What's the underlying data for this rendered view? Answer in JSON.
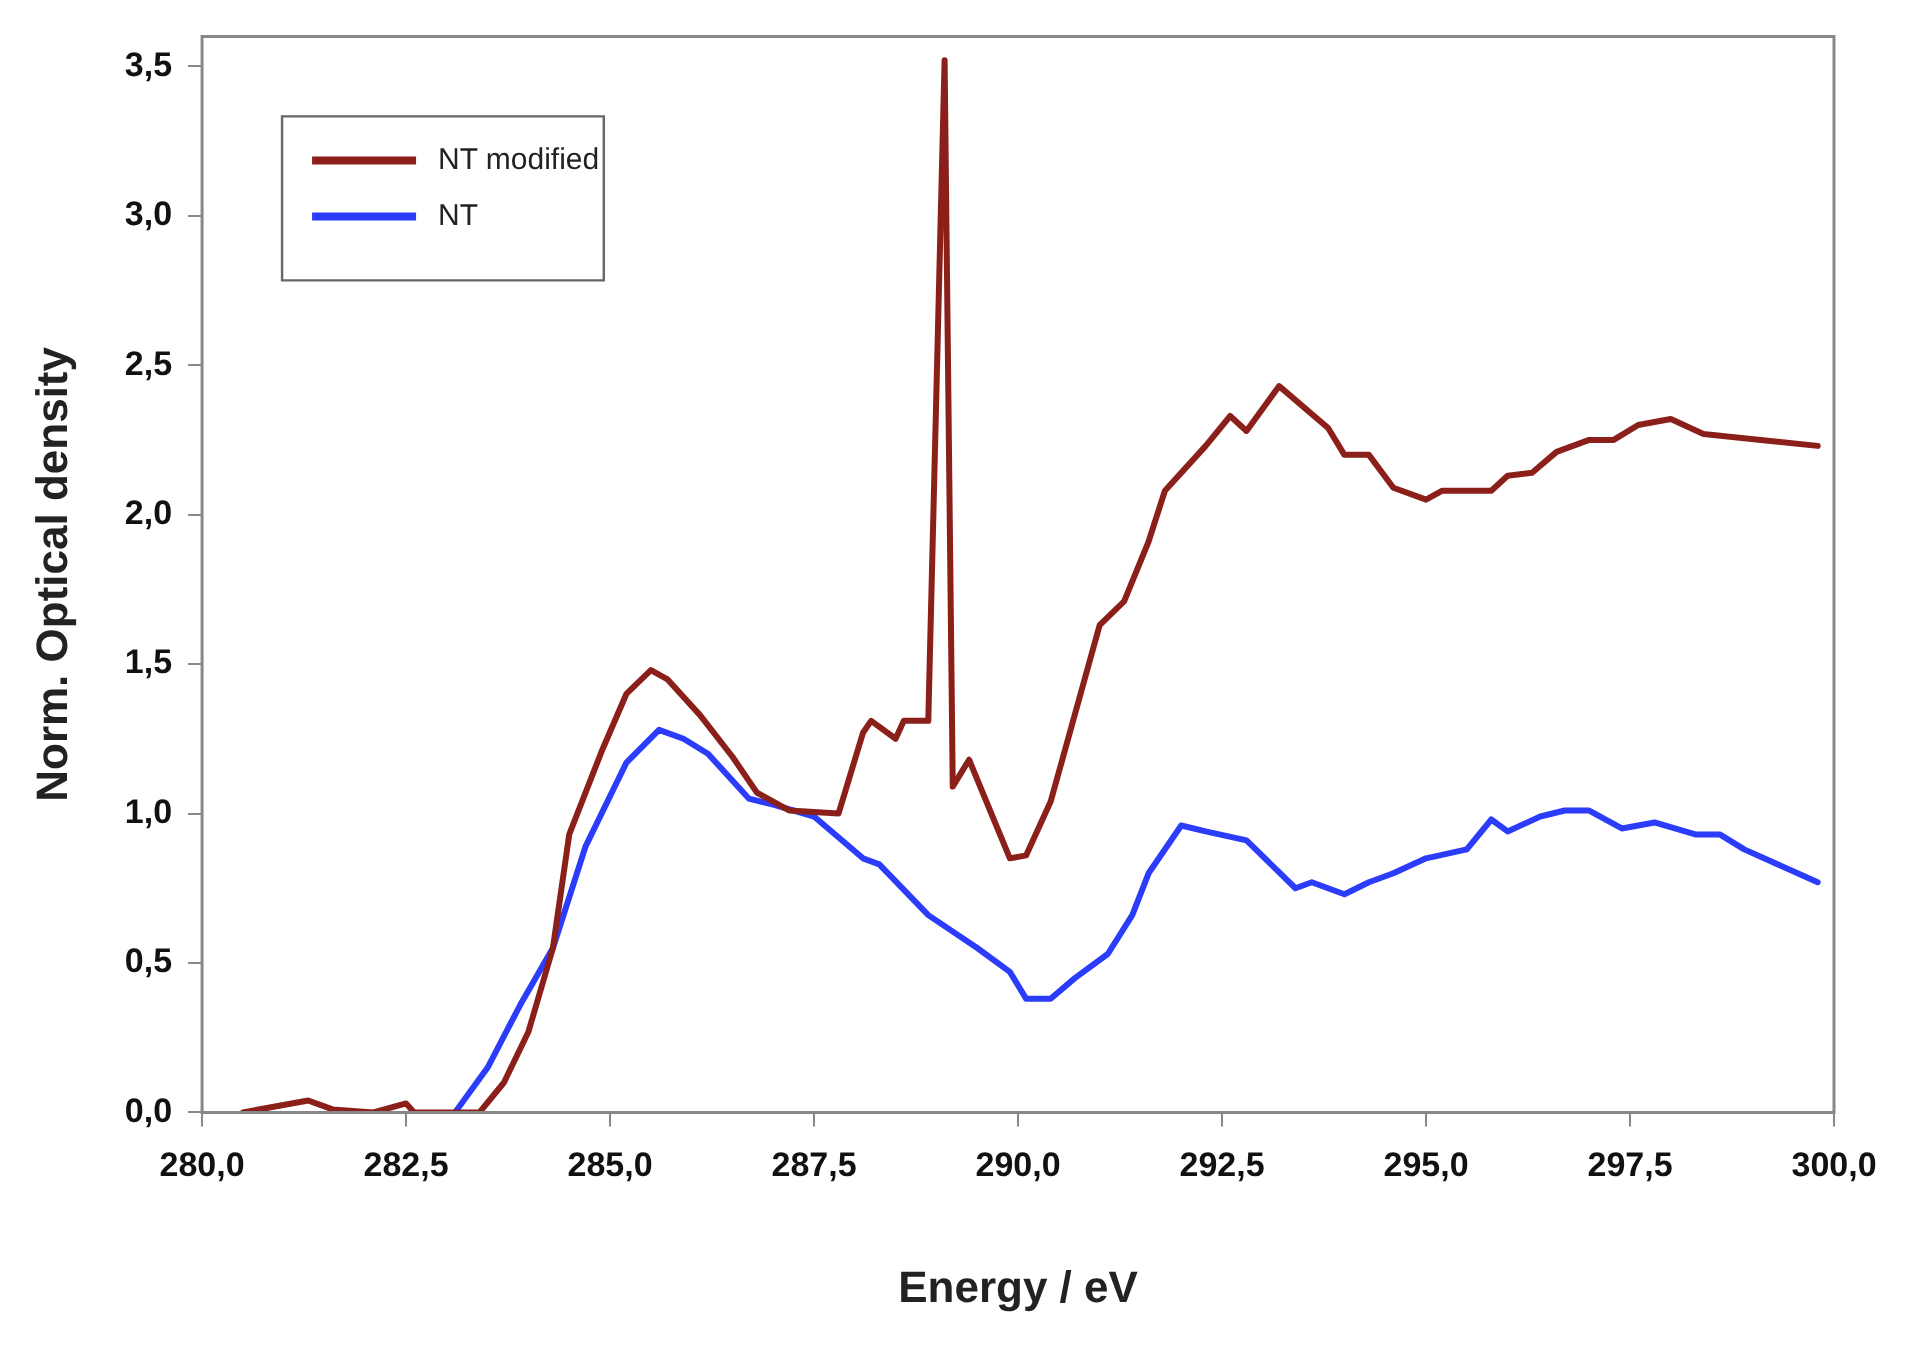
{
  "chart_data": {
    "type": "line",
    "xlabel": "Energy / eV",
    "ylabel": "Norm. Optical density",
    "xlim": [
      280,
      300
    ],
    "ylim": [
      0,
      3.6
    ],
    "xticks": [
      {
        "value": 280,
        "label": "280,0"
      },
      {
        "value": 282.5,
        "label": "282,5"
      },
      {
        "value": 285,
        "label": "285,0"
      },
      {
        "value": 287.5,
        "label": "287,5"
      },
      {
        "value": 290,
        "label": "290,0"
      },
      {
        "value": 292.5,
        "label": "292,5"
      },
      {
        "value": 295,
        "label": "295,0"
      },
      {
        "value": 297.5,
        "label": "297,5"
      },
      {
        "value": 300,
        "label": "300,0"
      }
    ],
    "yticks": [
      {
        "value": 0,
        "label": "0,0"
      },
      {
        "value": 0.5,
        "label": "0,5"
      },
      {
        "value": 1,
        "label": "1,0"
      },
      {
        "value": 1.5,
        "label": "1,5"
      },
      {
        "value": 2,
        "label": "2,0"
      },
      {
        "value": 2.5,
        "label": "2,5"
      },
      {
        "value": 3,
        "label": "3,0"
      },
      {
        "value": 3.5,
        "label": "3,5"
      }
    ],
    "grid": false,
    "legend": "top left",
    "marker": "none",
    "line_style": "solid",
    "series": [
      {
        "name": "NT modified",
        "color": "#8b1f1a",
        "x": [
          280.5,
          281.3,
          281.6,
          282.1,
          282.5,
          282.6,
          283.4,
          283.7,
          284.0,
          284.3,
          284.5,
          284.9,
          285.2,
          285.5,
          285.7,
          286.1,
          286.5,
          286.8,
          287.2,
          287.8,
          288.1,
          288.2,
          288.5,
          288.6,
          288.9,
          289.1,
          289.2,
          289.4,
          289.9,
          290.1,
          290.4,
          291.0,
          291.3,
          291.6,
          291.8,
          292.3,
          292.6,
          292.8,
          293.2,
          293.8,
          294.0,
          294.3,
          294.6,
          295.0,
          295.2,
          295.8,
          296.0,
          296.3,
          296.6,
          297.0,
          297.3,
          297.6,
          298.0,
          298.4,
          299.8
        ],
        "values": [
          0,
          0.04,
          0.01,
          0,
          0.03,
          0,
          0,
          0.1,
          0.27,
          0.55,
          0.93,
          1.21,
          1.4,
          1.48,
          1.45,
          1.33,
          1.19,
          1.07,
          1.01,
          1.0,
          1.27,
          1.31,
          1.25,
          1.31,
          1.31,
          3.52,
          1.09,
          1.18,
          0.85,
          0.86,
          1.04,
          1.63,
          1.71,
          1.91,
          2.08,
          2.23,
          2.33,
          2.28,
          2.43,
          2.29,
          2.2,
          2.2,
          2.09,
          2.05,
          2.08,
          2.08,
          2.13,
          2.14,
          2.21,
          2.25,
          2.25,
          2.3,
          2.32,
          2.27,
          2.23
        ]
      },
      {
        "name": "NT",
        "color": "#2b3cfb",
        "x": [
          283.1,
          283.5,
          283.9,
          284.3,
          284.7,
          285.2,
          285.6,
          285.9,
          286.2,
          286.7,
          287.0,
          287.5,
          288.1,
          288.3,
          288.9,
          289.5,
          289.9,
          290.1,
          290.4,
          290.7,
          291.1,
          291.4,
          291.6,
          292.0,
          292.3,
          292.8,
          293.4,
          293.6,
          294.0,
          294.3,
          294.6,
          295.0,
          295.5,
          295.8,
          296.0,
          296.4,
          296.7,
          297.0,
          297.4,
          297.8,
          298.3,
          298.6,
          298.9,
          299.8
        ],
        "values": [
          0,
          0.15,
          0.36,
          0.55,
          0.89,
          1.17,
          1.28,
          1.25,
          1.2,
          1.05,
          1.03,
          0.99,
          0.85,
          0.83,
          0.66,
          0.55,
          0.47,
          0.38,
          0.38,
          0.45,
          0.53,
          0.66,
          0.8,
          0.96,
          0.94,
          0.91,
          0.75,
          0.77,
          0.73,
          0.77,
          0.8,
          0.85,
          0.88,
          0.98,
          0.94,
          0.99,
          1.01,
          1.01,
          0.95,
          0.97,
          0.93,
          0.93,
          0.88,
          0.77
        ]
      }
    ]
  }
}
